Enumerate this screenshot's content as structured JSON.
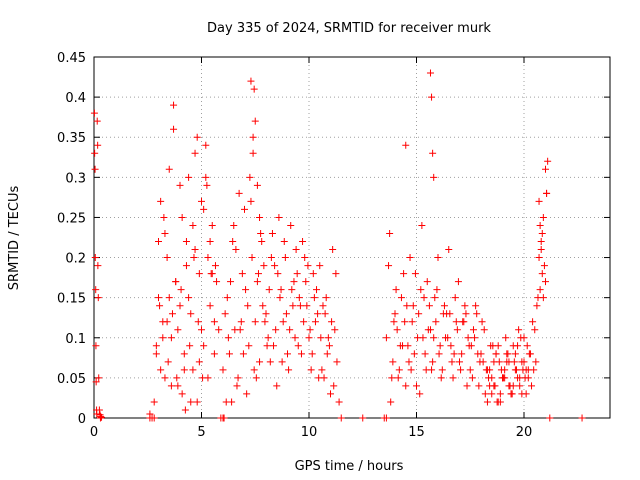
{
  "chart_data": {
    "type": "scatter",
    "title": "Day 335 of 2024, SRMTID for receiver murk",
    "xlabel": "GPS time / hours",
    "ylabel": "SRMTID / TECUs",
    "xlim": [
      0,
      24
    ],
    "ylim": [
      0,
      0.45
    ],
    "xticks": [
      "0",
      "5",
      "10",
      "15",
      "20"
    ],
    "yticks": [
      "0",
      "0.05",
      "0.1",
      "0.15",
      "0.2",
      "0.25",
      "0.3",
      "0.35",
      "0.4",
      "0.45"
    ],
    "grid": true,
    "marker": "+",
    "color": "#ff0000",
    "series": [
      {
        "x": [
          0.02,
          0.03,
          0.05,
          0.06,
          0.08,
          0.09,
          0.1,
          0.12,
          0.13,
          0.15,
          0.17,
          0.18,
          0.2,
          0.22,
          0.25,
          0.28,
          0.3,
          0.35,
          2.6,
          2.8,
          2.9,
          3.0,
          3.1,
          3.2,
          3.3,
          3.4,
          3.5,
          3.6,
          3.7,
          3.8,
          3.9,
          4.0,
          4.1,
          4.2,
          4.3,
          4.4,
          4.5,
          4.6,
          4.7,
          4.8,
          4.9,
          5.0,
          5.1,
          5.2,
          5.3,
          5.4,
          5.5,
          5.6,
          5.7,
          5.8,
          2.9,
          3.1,
          3.3,
          3.5,
          3.7,
          3.9,
          4.1,
          4.3,
          4.5,
          4.7,
          4.9,
          5.1,
          5.3,
          5.5,
          3.0,
          3.2,
          3.4,
          3.6,
          3.8,
          4.0,
          4.2,
          4.4,
          4.6,
          4.8,
          5.0,
          5.2,
          5.4,
          5.6,
          3.05,
          3.25,
          3.45,
          3.65,
          3.85,
          4.05,
          4.25,
          4.45,
          4.65,
          4.85,
          5.05,
          5.25,
          5.45,
          5.65,
          6.0,
          6.2,
          6.4,
          6.6,
          6.8,
          7.0,
          7.2,
          7.4,
          7.6,
          7.8,
          8.0,
          8.2,
          8.4,
          8.6,
          8.8,
          9.0,
          9.2,
          9.4,
          9.6,
          9.8,
          10.0,
          10.2,
          10.4,
          10.6,
          10.8,
          11.0,
          11.2,
          11.4,
          6.1,
          6.3,
          6.5,
          6.7,
          6.9,
          7.1,
          7.3,
          7.5,
          7.7,
          7.9,
          8.1,
          8.3,
          8.5,
          8.7,
          8.9,
          9.1,
          9.3,
          9.5,
          9.7,
          9.9,
          10.1,
          10.3,
          10.5,
          10.7,
          10.9,
          11.1,
          11.3,
          6.15,
          6.35,
          6.55,
          6.75,
          6.95,
          7.15,
          7.35,
          7.55,
          7.75,
          7.95,
          8.15,
          8.35,
          8.55,
          8.75,
          8.95,
          9.15,
          9.35,
          9.55,
          9.75,
          9.95,
          10.15,
          10.35,
          10.55,
          10.75,
          10.95,
          11.15,
          6.25,
          6.45,
          6.65,
          6.85,
          7.05,
          7.25,
          7.45,
          7.65,
          7.85,
          8.05,
          8.25,
          8.45,
          8.65,
          8.85,
          9.05,
          9.25,
          9.45,
          9.65,
          9.85,
          10.05,
          10.25,
          10.45,
          10.65,
          10.85,
          11.05,
          11.25,
          7.3,
          7.4,
          7.5,
          7.6,
          7.7,
          7.45,
          13.6,
          13.8,
          14.0,
          14.2,
          14.4,
          14.6,
          14.8,
          15.0,
          15.2,
          15.4,
          15.6,
          15.8,
          16.0,
          16.2,
          16.4,
          16.6,
          16.8,
          17.0,
          17.2,
          17.4,
          17.6,
          17.8,
          18.0,
          18.2,
          18.4,
          18.6,
          18.8,
          19.0,
          19.2,
          19.4,
          19.6,
          19.8,
          20.0,
          20.2,
          20.4,
          20.6,
          20.8,
          21.0,
          13.7,
          13.9,
          14.1,
          14.3,
          14.5,
          14.7,
          14.9,
          15.1,
          15.3,
          15.5,
          15.7,
          15.9,
          16.1,
          16.3,
          16.5,
          16.7,
          16.9,
          17.1,
          17.3,
          17.5,
          17.7,
          17.9,
          18.1,
          18.3,
          18.5,
          18.7,
          18.9,
          19.1,
          19.3,
          19.5,
          19.7,
          19.9,
          20.1,
          20.3,
          20.5,
          20.7,
          20.9,
          13.75,
          13.95,
          14.15,
          14.35,
          14.55,
          14.75,
          14.95,
          15.15,
          15.35,
          15.55,
          15.75,
          15.95,
          16.15,
          16.35,
          16.55,
          16.75,
          16.95,
          17.15,
          17.35,
          17.55,
          17.75,
          17.95,
          18.15,
          18.35,
          18.55,
          18.75,
          18.95,
          19.15,
          19.35,
          19.55,
          19.75,
          19.95,
          20.15,
          20.35,
          20.55,
          20.75,
          20.95,
          13.85,
          14.05,
          14.25,
          14.45,
          14.65,
          14.85,
          15.05,
          15.25,
          15.45,
          15.65,
          15.85,
          16.05,
          16.25,
          16.45,
          16.65,
          16.85,
          17.05,
          17.25,
          17.45,
          17.65,
          17.85,
          18.05,
          18.25,
          18.45,
          18.65,
          18.85,
          19.05,
          19.25,
          19.45,
          19.65,
          19.85,
          20.05,
          20.25,
          20.45,
          20.65,
          20.85,
          21.05,
          15.65,
          15.7,
          15.75,
          15.8,
          14.5,
          20.7,
          20.75,
          20.8,
          20.85,
          20.9,
          21.0,
          21.05,
          21.1,
          18.3,
          18.5,
          18.7,
          18.9,
          19.1,
          19.3,
          19.5,
          19.7,
          19.9,
          20.1,
          18.4,
          18.6,
          18.8,
          19.0,
          19.2,
          19.4,
          19.6,
          19.8,
          20.0,
          20.2,
          0.3,
          2.6,
          2.7,
          2.8,
          5.9,
          6.0,
          6.05,
          11.5,
          12.5,
          13.5,
          13.6,
          21.2,
          22.7
        ],
        "y": [
          0.38,
          0.33,
          0.31,
          0.2,
          0.16,
          0.09,
          0.045,
          0.01,
          0.005,
          0.37,
          0.34,
          0.19,
          0.15,
          0.05,
          0.01,
          0.004,
          0.002,
          0.001,
          0.005,
          0.02,
          0.08,
          0.15,
          0.27,
          0.12,
          0.05,
          0.2,
          0.31,
          0.1,
          0.36,
          0.17,
          0.04,
          0.14,
          0.25,
          0.08,
          0.22,
          0.3,
          0.13,
          0.06,
          0.21,
          0.35,
          0.18,
          0.27,
          0.09,
          0.3,
          0.2,
          0.14,
          0.24,
          0.12,
          0.17,
          0.11,
          0.09,
          0.06,
          0.23,
          0.15,
          0.39,
          0.11,
          0.03,
          0.19,
          0.02,
          0.33,
          0.07,
          0.26,
          0.05,
          0.18,
          0.22,
          0.1,
          0.12,
          0.04,
          0.17,
          0.29,
          0.06,
          0.15,
          0.24,
          0.02,
          0.11,
          0.34,
          0.22,
          0.08,
          0.14,
          0.25,
          0.07,
          0.13,
          0.05,
          0.16,
          0.01,
          0.09,
          0.2,
          0.12,
          0.05,
          0.29,
          0.18,
          0.19,
          0.06,
          0.15,
          0.02,
          0.21,
          0.11,
          0.26,
          0.09,
          0.33,
          0.17,
          0.22,
          0.13,
          0.07,
          0.19,
          0.25,
          0.12,
          0.08,
          0.16,
          0.21,
          0.14,
          0.2,
          0.1,
          0.18,
          0.13,
          0.06,
          0.15,
          0.03,
          0.11,
          0.02,
          0.13,
          0.08,
          0.24,
          0.05,
          0.18,
          0.03,
          0.27,
          0.12,
          0.07,
          0.19,
          0.1,
          0.23,
          0.04,
          0.16,
          0.2,
          0.11,
          0.17,
          0.09,
          0.22,
          0.14,
          0.06,
          0.12,
          0.19,
          0.05,
          0.1,
          0.21,
          0.07,
          0.02,
          0.17,
          0.11,
          0.28,
          0.08,
          0.14,
          0.2,
          0.05,
          0.23,
          0.12,
          0.16,
          0.09,
          0.18,
          0.07,
          0.13,
          0.24,
          0.1,
          0.15,
          0.12,
          0.19,
          0.08,
          0.16,
          0.1,
          0.13,
          0.09,
          0.04,
          0.1,
          0.22,
          0.04,
          0.12,
          0.16,
          0.3,
          0.06,
          0.18,
          0.14,
          0.09,
          0.2,
          0.11,
          0.15,
          0.22,
          0.06,
          0.14,
          0.18,
          0.08,
          0.17,
          0.11,
          0.15,
          0.05,
          0.14,
          0.08,
          0.12,
          0.18,
          0.42,
          0.35,
          0.37,
          0.29,
          0.25,
          0.41,
          0.1,
          0.02,
          0.13,
          0.06,
          0.18,
          0.09,
          0.12,
          0.04,
          0.16,
          0.08,
          0.14,
          0.1,
          0.2,
          0.06,
          0.13,
          0.09,
          0.15,
          0.07,
          0.12,
          0.1,
          0.05,
          0.13,
          0.08,
          0.03,
          0.06,
          0.04,
          0.09,
          0.05,
          0.07,
          0.03,
          0.08,
          0.05,
          0.1,
          0.06,
          0.12,
          0.14,
          0.22,
          0.17,
          0.19,
          0.07,
          0.11,
          0.15,
          0.04,
          0.2,
          0.08,
          0.13,
          0.1,
          0.17,
          0.06,
          0.12,
          0.09,
          0.14,
          0.21,
          0.05,
          0.11,
          0.08,
          0.13,
          0.06,
          0.1,
          0.04,
          0.07,
          0.02,
          0.05,
          0.08,
          0.03,
          0.06,
          0.04,
          0.09,
          0.05,
          0.07,
          0.03,
          0.08,
          0.11,
          0.2,
          0.25,
          0.23,
          0.12,
          0.05,
          0.09,
          0.14,
          0.06,
          0.18,
          0.03,
          0.15,
          0.11,
          0.07,
          0.16,
          0.05,
          0.1,
          0.13,
          0.08,
          0.17,
          0.12,
          0.04,
          0.09,
          0.14,
          0.07,
          0.11,
          0.05,
          0.09,
          0.02,
          0.06,
          0.1,
          0.04,
          0.07,
          0.11,
          0.06,
          0.09,
          0.04,
          0.07,
          0.16,
          0.19,
          0.05,
          0.16,
          0.09,
          0.12,
          0.07,
          0.14,
          0.1,
          0.24,
          0.06,
          0.11,
          0.15,
          0.08,
          0.13,
          0.1,
          0.07,
          0.12,
          0.06,
          0.14,
          0.09,
          0.11,
          0.08,
          0.12,
          0.06,
          0.09,
          0.04,
          0.07,
          0.05,
          0.08,
          0.03,
          0.06,
          0.1,
          0.05,
          0.08,
          0.06,
          0.15,
          0.23,
          0.28,
          0.43,
          0.4,
          0.33,
          0.3,
          0.34,
          0.27,
          0.24,
          0.21,
          0.18,
          0.15,
          0.31,
          0.28,
          0.32,
          0.06,
          0.03,
          0.08,
          0.02,
          0.05,
          0.07,
          0.04,
          0.09,
          0.03,
          0.06,
          0.04,
          0.07,
          0.02,
          0.05,
          0.08,
          0.03,
          0.06,
          0.04,
          0.07,
          0.05,
          0.0,
          0.0,
          0.0,
          0.0,
          0.0,
          0.0,
          0.0,
          0.0,
          0.0,
          0.0,
          0.0,
          0.0,
          0.0
        ]
      }
    ]
  }
}
